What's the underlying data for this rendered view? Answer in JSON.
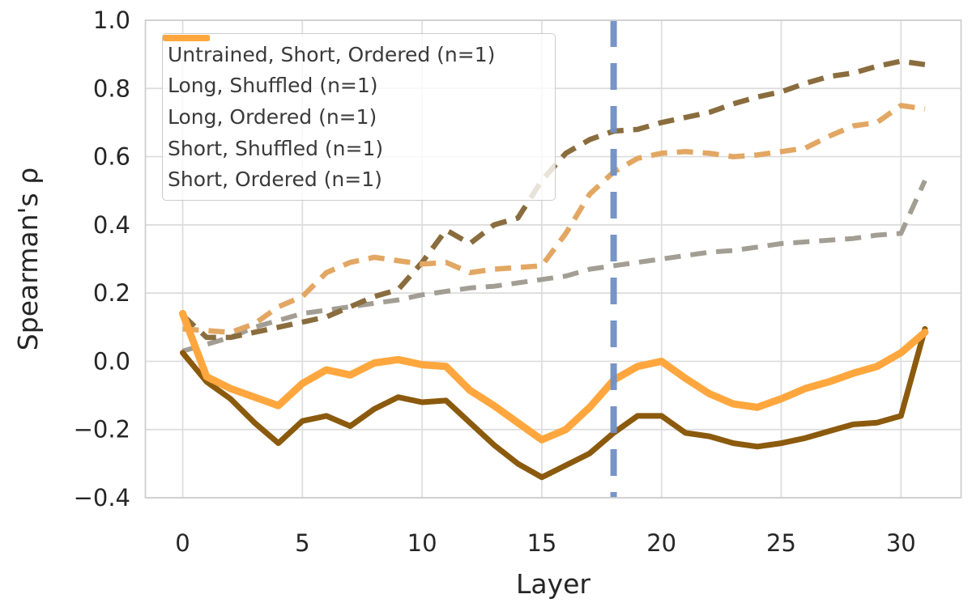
{
  "figure": {
    "background": "#ffffff",
    "text_color": "#262626",
    "grid_color": "#dcdcdc",
    "spine_color": "#cfcfcf"
  },
  "chart_data": {
    "type": "line",
    "title": "",
    "xlabel": "Layer",
    "ylabel": "Spearman's ρ",
    "xlim": [
      -1.6,
      32.5
    ],
    "ylim": [
      -0.4,
      1.0
    ],
    "grid": true,
    "legend_position": "upper left",
    "xticks": [
      0,
      5,
      10,
      15,
      20,
      25,
      30
    ],
    "xtick_labels": [
      "0",
      "5",
      "10",
      "15",
      "20",
      "25",
      "30"
    ],
    "ytick_values": [
      1.0,
      0.8,
      0.6,
      0.4,
      0.2,
      0.0,
      -0.2,
      -0.4
    ],
    "ytick_labels": [
      "1.0",
      "0.8",
      "0.6",
      "0.4",
      "0.2",
      "0.0",
      "−0.2",
      "−0.4"
    ],
    "x": [
      0,
      1,
      2,
      3,
      4,
      5,
      6,
      7,
      8,
      9,
      10,
      11,
      12,
      13,
      14,
      15,
      16,
      17,
      18,
      19,
      20,
      21,
      22,
      23,
      24,
      25,
      26,
      27,
      28,
      29,
      30,
      31
    ],
    "series": [
      {
        "name": "Untrained, Short, Ordered (n=1)",
        "color": "#a39e93",
        "style": "dashed",
        "linewidth": 6,
        "values": [
          0.03,
          0.05,
          0.07,
          0.1,
          0.12,
          0.14,
          0.15,
          0.16,
          0.17,
          0.18,
          0.195,
          0.205,
          0.215,
          0.22,
          0.23,
          0.24,
          0.25,
          0.27,
          0.28,
          0.29,
          0.3,
          0.31,
          0.32,
          0.325,
          0.335,
          0.345,
          0.35,
          0.355,
          0.36,
          0.37,
          0.375,
          0.53
        ]
      },
      {
        "name": "Long, Shuffled (n=1)",
        "color": "#8a6d3e",
        "style": "dashed",
        "linewidth": 6.5,
        "values": [
          0.135,
          0.07,
          0.07,
          0.085,
          0.1,
          0.115,
          0.13,
          0.16,
          0.19,
          0.21,
          0.29,
          0.385,
          0.345,
          0.4,
          0.42,
          0.53,
          0.61,
          0.65,
          0.675,
          0.68,
          0.7,
          0.715,
          0.73,
          0.755,
          0.775,
          0.79,
          0.815,
          0.835,
          0.845,
          0.865,
          0.88,
          0.87
        ]
      },
      {
        "name": "Long, Ordered (n=1)",
        "color": "#8b5a0d",
        "style": "solid",
        "linewidth": 7,
        "values": [
          0.025,
          -0.06,
          -0.11,
          -0.18,
          -0.24,
          -0.175,
          -0.16,
          -0.19,
          -0.14,
          -0.105,
          -0.12,
          -0.115,
          -0.18,
          -0.245,
          -0.3,
          -0.34,
          -0.305,
          -0.27,
          -0.21,
          -0.16,
          -0.16,
          -0.21,
          -0.22,
          -0.24,
          -0.25,
          -0.24,
          -0.225,
          -0.205,
          -0.185,
          -0.18,
          -0.16,
          0.095
        ]
      },
      {
        "name": "Short, Shuffled (n=1)",
        "color": "#e2a763",
        "style": "dashed",
        "linewidth": 6.5,
        "values": [
          0.095,
          0.09,
          0.085,
          0.11,
          0.16,
          0.19,
          0.26,
          0.29,
          0.305,
          0.295,
          0.285,
          0.29,
          0.26,
          0.27,
          0.275,
          0.28,
          0.375,
          0.49,
          0.555,
          0.595,
          0.61,
          0.615,
          0.61,
          0.6,
          0.605,
          0.615,
          0.625,
          0.66,
          0.69,
          0.7,
          0.75,
          0.74
        ]
      },
      {
        "name": "Short, Ordered (n=1)",
        "color": "#ffa73e",
        "style": "solid",
        "linewidth": 9,
        "values": [
          0.14,
          -0.045,
          -0.08,
          -0.105,
          -0.13,
          -0.065,
          -0.025,
          -0.04,
          -0.005,
          0.005,
          -0.01,
          -0.015,
          -0.085,
          -0.13,
          -0.18,
          -0.23,
          -0.2,
          -0.135,
          -0.055,
          -0.015,
          0.0,
          -0.05,
          -0.095,
          -0.125,
          -0.135,
          -0.11,
          -0.08,
          -0.06,
          -0.035,
          -0.015,
          0.025,
          0.085
        ]
      }
    ],
    "vline": {
      "x": 18,
      "color": "#7090c4",
      "style": "dashed",
      "linewidth": 8
    }
  }
}
